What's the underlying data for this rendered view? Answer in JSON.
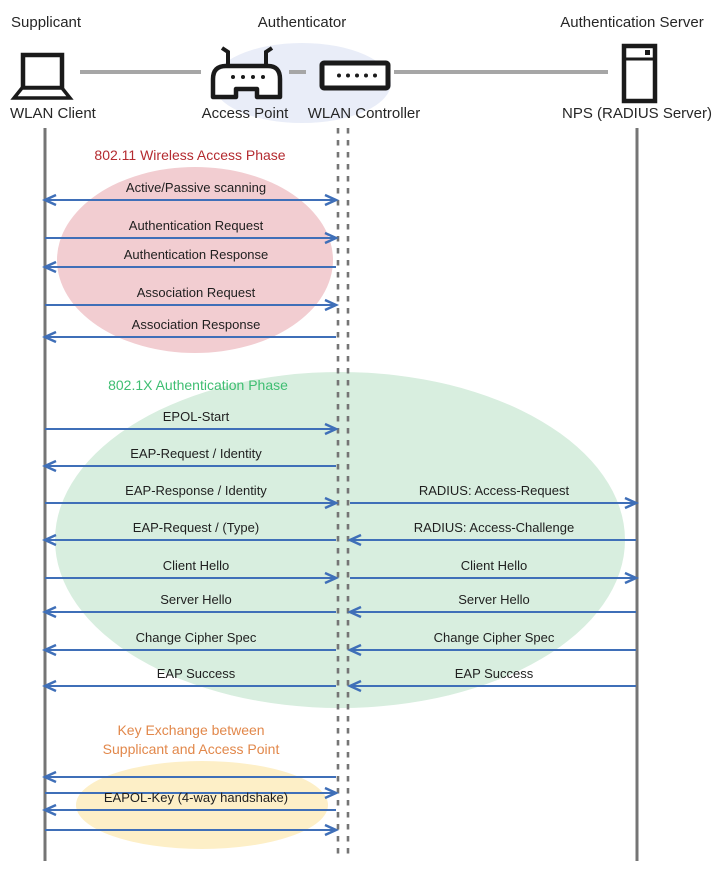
{
  "header": {
    "roles": [
      {
        "label": "Supplicant"
      },
      {
        "label": "Authenticator"
      },
      {
        "label": "Authentication Server"
      }
    ],
    "devices": [
      {
        "label": "WLAN Client",
        "icon": "laptop-icon"
      },
      {
        "label": "Access Point",
        "icon": "access-point-icon"
      },
      {
        "label": "WLAN Controller",
        "icon": "wlan-controller-icon"
      },
      {
        "label": "NPS (RADIUS Server)",
        "icon": "server-icon"
      }
    ]
  },
  "phases": [
    {
      "title": "802.11 Wireless Access Phase",
      "title_color": "#B42B30",
      "ellipse_fill": "#F2CDD1",
      "messages": [
        {
          "left": {
            "label": "Active/Passive scanning",
            "dir": "both"
          }
        },
        {
          "left": {
            "label": "Authentication Request",
            "dir": "right"
          }
        },
        {
          "left": {
            "label": "Authentication Response",
            "dir": "left"
          }
        },
        {
          "left": {
            "label": "Association Request",
            "dir": "right"
          }
        },
        {
          "left": {
            "label": "Association Response",
            "dir": "left"
          }
        }
      ]
    },
    {
      "title": "802.1X Authentication Phase",
      "title_color": "#3FBE72",
      "ellipse_fill": "#D8EEDF",
      "messages": [
        {
          "left": {
            "label": "EPOL-Start",
            "dir": "right"
          }
        },
        {
          "left": {
            "label": "EAP-Request / Identity",
            "dir": "left"
          }
        },
        {
          "left": {
            "label": "EAP-Response / Identity",
            "dir": "right"
          },
          "right": {
            "label": "RADIUS: Access-Request",
            "dir": "right"
          }
        },
        {
          "left": {
            "label": "EAP-Request / (Type)",
            "dir": "left"
          },
          "right": {
            "label": "RADIUS: Access-Challenge",
            "dir": "left"
          }
        },
        {
          "left": {
            "label": "Client Hello",
            "dir": "right"
          },
          "right": {
            "label": "Client Hello",
            "dir": "right"
          }
        },
        {
          "left": {
            "label": "Server Hello",
            "dir": "left"
          },
          "right": {
            "label": "Server Hello",
            "dir": "left"
          }
        },
        {
          "left": {
            "label": "Change Cipher Spec",
            "dir": "left"
          },
          "right": {
            "label": "Change Cipher Spec",
            "dir": "left"
          }
        },
        {
          "left": {
            "label": "EAP Success",
            "dir": "left"
          },
          "right": {
            "label": "EAP Success",
            "dir": "left"
          }
        }
      ]
    },
    {
      "title": "Key Exchange between\nSupplicant and Access Point",
      "title_color": "#E2884B",
      "ellipse_fill": "#FDEFC7",
      "messages": [
        {
          "left": {
            "label": "",
            "dir": "left"
          }
        },
        {
          "left": {
            "label": "",
            "dir": "right"
          }
        },
        {
          "left": {
            "label": "EAPOL-Key (4-way handshake)",
            "dir": "left"
          }
        },
        {
          "left": {
            "label": "",
            "dir": "right"
          }
        }
      ]
    }
  ],
  "colors": {
    "arrow": "#3F6FB8",
    "lifeline": "#757575",
    "connector": "#A6A6A6",
    "icon_stroke": "#1A1A1A",
    "authenticator_ellipse_fill": "#E9EDF8"
  }
}
